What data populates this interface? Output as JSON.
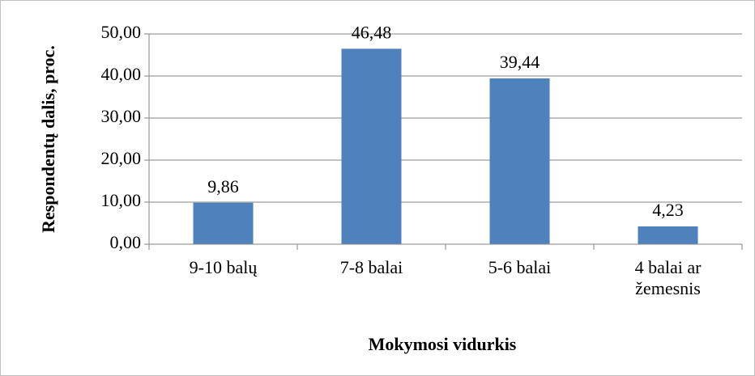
{
  "chart_data": {
    "type": "bar",
    "categories": [
      "9-10 balų",
      "7-8 balai",
      "5-6 balai",
      "4 balai ar žemesnis"
    ],
    "values": [
      9.86,
      46.48,
      39.44,
      4.23
    ],
    "value_labels": [
      "9,86",
      "46,48",
      "39,44",
      "4,23"
    ],
    "color": "#4f81bd",
    "ylim": [
      0,
      50
    ],
    "yticks": [
      {
        "value": 0,
        "label": "0,00"
      },
      {
        "value": 10,
        "label": "10,00"
      },
      {
        "value": 20,
        "label": "20,00"
      },
      {
        "value": 30,
        "label": "30,00"
      },
      {
        "value": 40,
        "label": "40,00"
      },
      {
        "value": 50,
        "label": "50,00"
      }
    ],
    "grid": true,
    "xlabel": "Mokymosi vidurkis",
    "ylabel": "Respondentų dalis, proc."
  }
}
